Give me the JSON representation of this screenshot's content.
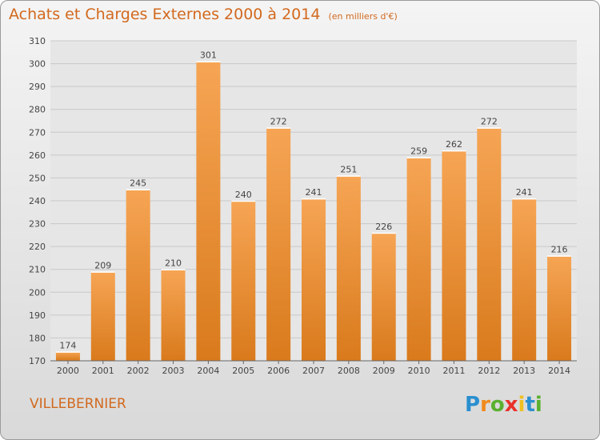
{
  "chart_data": {
    "type": "bar",
    "title": "Achats et Charges Externes 2000 à 2014",
    "subtitle": "(en milliers d'€)",
    "categories": [
      "2000",
      "2001",
      "2002",
      "2003",
      "2004",
      "2005",
      "2006",
      "2007",
      "2008",
      "2009",
      "2010",
      "2011",
      "2012",
      "2013",
      "2014"
    ],
    "values": [
      174,
      209,
      245,
      210,
      301,
      240,
      272,
      241,
      251,
      226,
      259,
      262,
      272,
      241,
      216
    ],
    "ylim": [
      170,
      310
    ],
    "yticks": [
      170,
      180,
      190,
      200,
      210,
      220,
      230,
      240,
      250,
      260,
      270,
      280,
      290,
      300,
      310
    ],
    "grid": true,
    "xlabel": "",
    "ylabel": "",
    "bar_color": "#f0963c"
  },
  "footer": {
    "commune": "VILLEBERNIER",
    "logo_letters": [
      "P",
      "r",
      "o",
      "x",
      "i",
      "t",
      "i"
    ],
    "logo_colors": [
      "#2a8fd0",
      "#f08a1c",
      "#5ab030",
      "#e8312a",
      "#f0c020",
      "#2a8fd0",
      "#5ab030"
    ]
  }
}
